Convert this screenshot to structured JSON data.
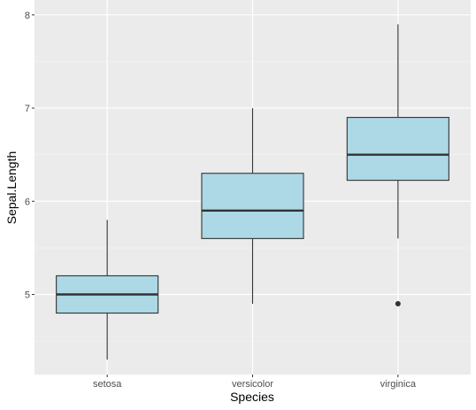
{
  "chart_data": {
    "type": "box",
    "title": "",
    "xlabel": "Species",
    "ylabel": "Sepal.Length",
    "ylim": [
      4.14,
      8.16
    ],
    "y_ticks": [
      5,
      6,
      7,
      8
    ],
    "y_minor_ticks": [
      4.5,
      5.5,
      6.5,
      7.5
    ],
    "grid": true,
    "categories": [
      "setosa",
      "versicolor",
      "virginica"
    ],
    "boxes": [
      {
        "category": "setosa",
        "min": 4.3,
        "q1": 4.8,
        "median": 5.0,
        "q3": 5.2,
        "max": 5.8,
        "outliers": []
      },
      {
        "category": "versicolor",
        "min": 4.9,
        "q1": 5.6,
        "median": 5.9,
        "q3": 6.3,
        "max": 7.0,
        "outliers": []
      },
      {
        "category": "virginica",
        "min": 5.6,
        "q1": 6.225,
        "median": 6.5,
        "q3": 6.9,
        "max": 7.9,
        "outliers": [
          4.9
        ]
      }
    ],
    "colors": {
      "panel_background": "#ebebeb",
      "grid_major": "#ffffff",
      "grid_minor": "#f5f5f5",
      "box_fill": "#add8e6",
      "box_stroke": "#333333",
      "outlier": "#333333",
      "tick_label": "#4d4d4d",
      "tick_mark": "#333333"
    }
  }
}
